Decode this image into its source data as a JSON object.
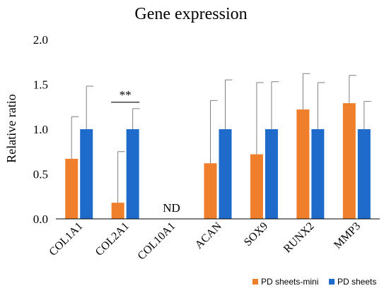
{
  "chart_data": {
    "type": "bar",
    "title": "Gene expression",
    "xlabel": "",
    "ylabel": "Relative ratio",
    "ylim": [
      0,
      2.0
    ],
    "yticks": [
      "0.0",
      "0.5",
      "1.0",
      "1.5",
      "2.0"
    ],
    "grid": false,
    "legend_position": "bottom-right",
    "categories": [
      "COL1A1",
      "COL2A1",
      "COL10A1",
      "ACAN",
      "SOX9",
      "RUNX2",
      "MMP3"
    ],
    "series": [
      {
        "name": "PD sheets-mini",
        "color": "#F07F2B",
        "values": [
          0.67,
          0.18,
          null,
          0.62,
          0.72,
          1.22,
          1.29
        ],
        "error": [
          0.47,
          0.57,
          null,
          0.7,
          0.8,
          0.4,
          0.31
        ]
      },
      {
        "name": "PD sheets",
        "color": "#1F6BCB",
        "values": [
          1.0,
          1.0,
          null,
          1.0,
          1.0,
          1.0,
          1.0
        ],
        "error": [
          0.48,
          0.23,
          null,
          0.55,
          0.53,
          0.52,
          0.31
        ]
      }
    ],
    "annotations": [
      {
        "category": "COL2A1",
        "text": "**",
        "y": 1.34
      },
      {
        "category": "COL10A1",
        "text": "ND",
        "y": 0.08
      }
    ]
  }
}
